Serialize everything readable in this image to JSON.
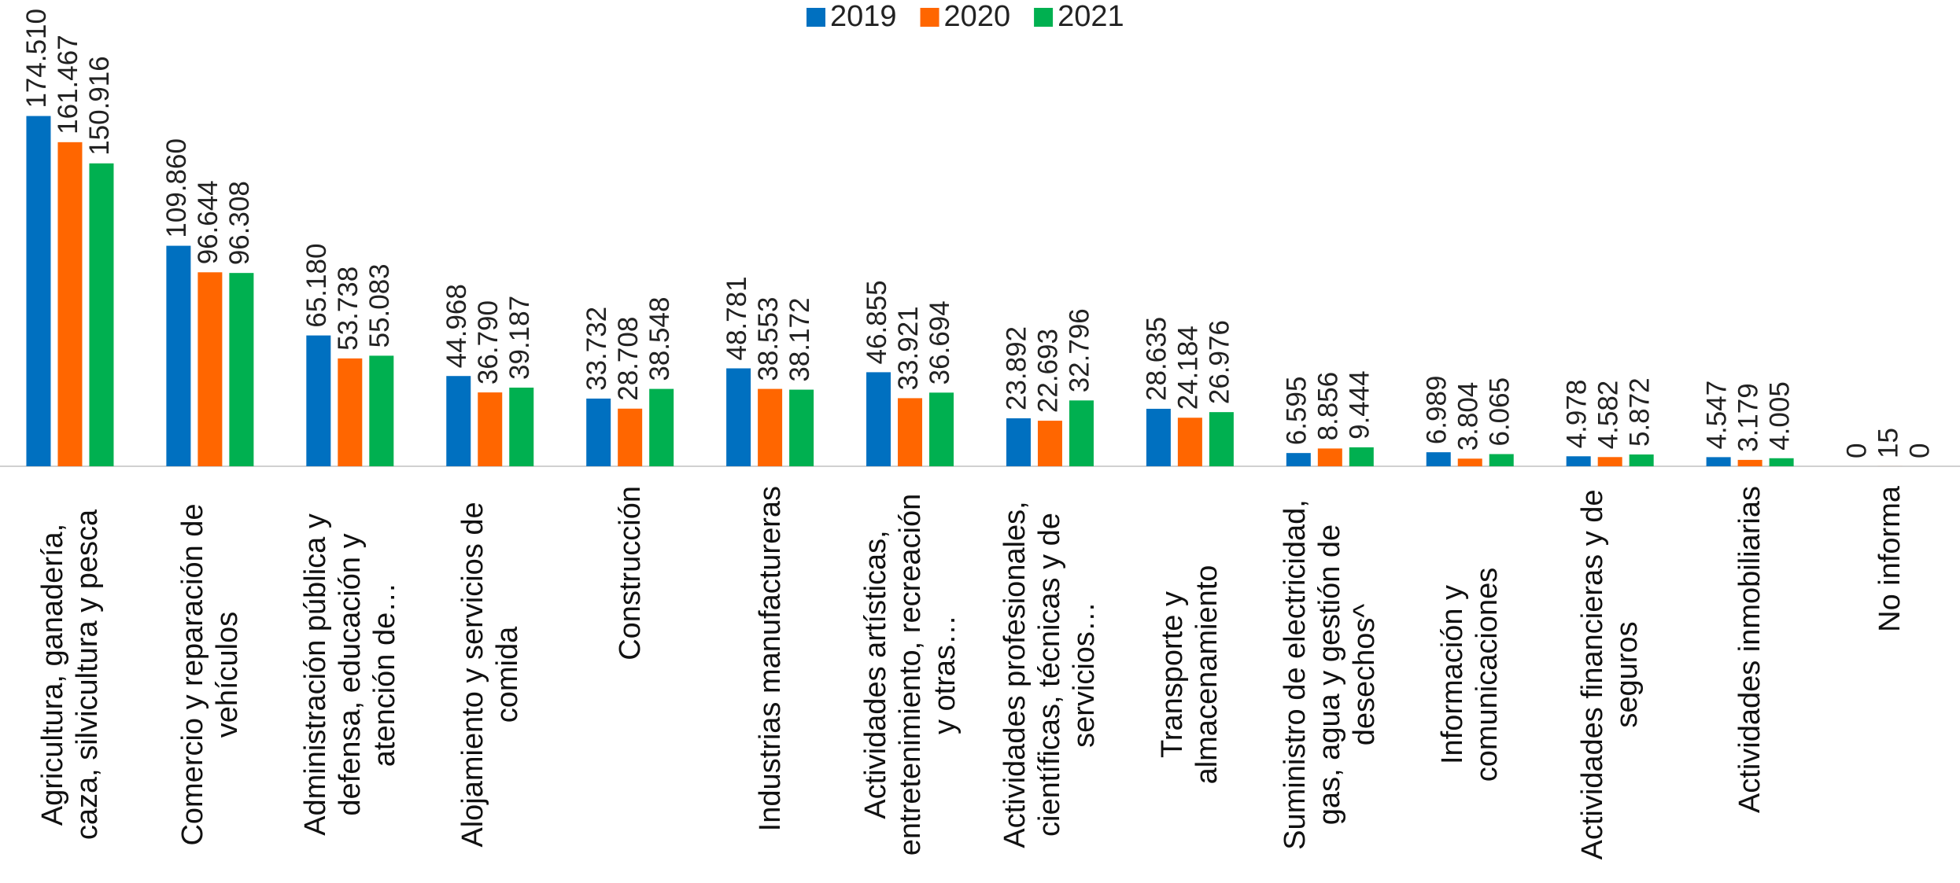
{
  "chart_data": {
    "type": "bar",
    "categories": [
      "Agricultura, ganadería, caza, silvicultura y pesca",
      "Comercio y reparación de vehículos",
      "Administración pública y defensa, educación y atención de…",
      "Alojamiento y servicios de comida",
      "Construcción",
      "Industrias manufactureras",
      "Actividades artísticas, entretenimiento, recreación y otras…",
      "Actividades profesionales, científicas, técnicas y de servicios…",
      "Transporte y almacenamiento",
      "Suministro de electricidad, gas, agua y gestión de desechos^",
      "Información y comunicaciones",
      "Actividades financieras y de seguros",
      "Actividades inmobiliarias",
      "No informa"
    ],
    "series": [
      {
        "name": "2019",
        "color": "#0070c0",
        "values": [
          174510,
          109860,
          65180,
          44968,
          33732,
          48781,
          46855,
          23892,
          28635,
          6595,
          6989,
          4978,
          4547,
          0
        ],
        "value_labels": [
          "174.510",
          "109.860",
          "65.180",
          "44.968",
          "33.732",
          "48.781",
          "46.855",
          "23.892",
          "28.635",
          "6.595",
          "6.989",
          "4.978",
          "4.547",
          "0"
        ]
      },
      {
        "name": "2020",
        "color": "#ff6600",
        "values": [
          161467,
          96644,
          53738,
          36790,
          28708,
          38553,
          33921,
          22693,
          24184,
          8856,
          3804,
          4582,
          3179,
          15
        ],
        "value_labels": [
          "161.467",
          "96.644",
          "53.738",
          "36.790",
          "28.708",
          "38.553",
          "33.921",
          "22.693",
          "24.184",
          "8.856",
          "3.804",
          "4.582",
          "3.179",
          "15"
        ]
      },
      {
        "name": "2021",
        "color": "#00b050",
        "values": [
          150916,
          96308,
          55083,
          39187,
          38548,
          38172,
          36694,
          32796,
          26976,
          9444,
          6065,
          5872,
          4005,
          0
        ],
        "value_labels": [
          "150.916",
          "96.308",
          "55.083",
          "39.187",
          "38.548",
          "38.172",
          "36.694",
          "32.796",
          "26.976",
          "9.444",
          "6.065",
          "5.872",
          "4.005",
          "0"
        ]
      }
    ],
    "ylim": [
      0,
      190000
    ],
    "legend": "top"
  }
}
